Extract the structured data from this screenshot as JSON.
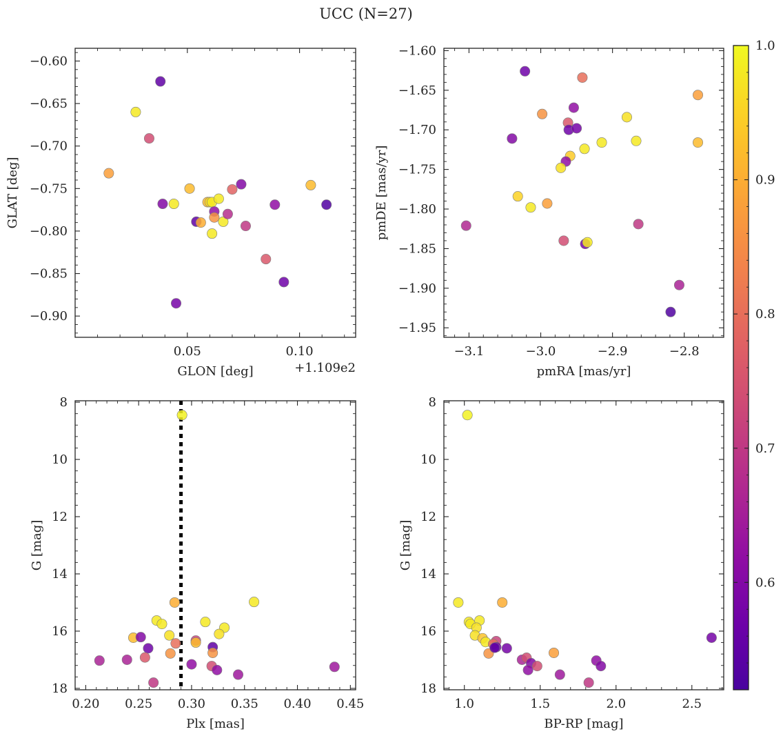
{
  "figure": {
    "title": "UCC (N=27)"
  },
  "colorbar": {
    "cmap": "plasma",
    "min": 0.52,
    "max": 1.0,
    "ticks": [
      0.6,
      0.7,
      0.8,
      0.9,
      1.0
    ],
    "tick_labels": [
      "0.6",
      "0.7",
      "0.8",
      "0.9",
      "1.0"
    ]
  },
  "chart_data": [
    {
      "type": "scatter",
      "name": "sky",
      "xlabel": "GLON [deg]",
      "ylabel": "GLAT [deg]",
      "offset_text": "+1.109e2",
      "xlim": [
        0.0,
        0.125
      ],
      "ylim": [
        -0.925,
        -0.585
      ],
      "invert_y": false,
      "xticks": [
        0.05,
        0.1
      ],
      "xtick_labels": [
        "0.05",
        "0.10"
      ],
      "yticks": [
        -0.9,
        -0.85,
        -0.8,
        -0.75,
        -0.7,
        -0.65,
        -0.6
      ],
      "ytick_labels": [
        "−0.90",
        "−0.85",
        "−0.80",
        "−0.75",
        "−0.70",
        "−0.65",
        "−0.60"
      ],
      "points": [
        [
          0.038,
          -0.624,
          0.55
        ],
        [
          0.027,
          -0.66,
          0.98
        ],
        [
          0.033,
          -0.691,
          0.74
        ],
        [
          0.015,
          -0.732,
          0.88
        ],
        [
          0.039,
          -0.768,
          0.6
        ],
        [
          0.044,
          -0.768,
          0.98
        ],
        [
          0.051,
          -0.75,
          0.92
        ],
        [
          0.054,
          -0.789,
          0.55
        ],
        [
          0.056,
          -0.79,
          0.9
        ],
        [
          0.059,
          -0.766,
          0.92
        ],
        [
          0.06,
          -0.766,
          0.96
        ],
        [
          0.061,
          -0.766,
          0.98
        ],
        [
          0.062,
          -0.777,
          0.62
        ],
        [
          0.062,
          -0.784,
          0.86
        ],
        [
          0.061,
          -0.803,
          0.98
        ],
        [
          0.064,
          -0.762,
          0.98
        ],
        [
          0.066,
          -0.789,
          0.98
        ],
        [
          0.068,
          -0.78,
          0.68
        ],
        [
          0.07,
          -0.751,
          0.78
        ],
        [
          0.074,
          -0.745,
          0.6
        ],
        [
          0.076,
          -0.794,
          0.7
        ],
        [
          0.045,
          -0.885,
          0.58
        ],
        [
          0.085,
          -0.833,
          0.76
        ],
        [
          0.089,
          -0.769,
          0.62
        ],
        [
          0.093,
          -0.86,
          0.57
        ],
        [
          0.105,
          -0.746,
          0.92
        ],
        [
          0.112,
          -0.769,
          0.53
        ]
      ]
    },
    {
      "type": "scatter",
      "name": "proper-motion",
      "xlabel": "pmRA [mas/yr]",
      "ylabel": "pmDE [mas/yr]",
      "xlim": [
        -3.135,
        -2.745
      ],
      "ylim": [
        -1.962,
        -1.597
      ],
      "invert_y": false,
      "xticks": [
        -3.1,
        -3.0,
        -2.9,
        -2.8
      ],
      "xtick_labels": [
        "−3.1",
        "−3.0",
        "−2.9",
        "−2.8"
      ],
      "yticks": [
        -1.95,
        -1.9,
        -1.85,
        -1.8,
        -1.75,
        -1.7,
        -1.65,
        -1.6
      ],
      "ytick_labels": [
        "−1.95",
        "−1.90",
        "−1.85",
        "−1.80",
        "−1.75",
        "−1.70",
        "−1.65",
        "−1.60"
      ],
      "points": [
        [
          -3.022,
          -1.626,
          0.57
        ],
        [
          -2.942,
          -1.634,
          0.8
        ],
        [
          -2.781,
          -1.656,
          0.88
        ],
        [
          -2.954,
          -1.672,
          0.62
        ],
        [
          -2.998,
          -1.68,
          0.86
        ],
        [
          -2.962,
          -1.691,
          0.76
        ],
        [
          -2.961,
          -1.7,
          0.57
        ],
        [
          -2.95,
          -1.698,
          0.58
        ],
        [
          -3.04,
          -1.711,
          0.6
        ],
        [
          -2.88,
          -1.684,
          0.97
        ],
        [
          -2.867,
          -1.714,
          0.98
        ],
        [
          -2.915,
          -1.716,
          0.98
        ],
        [
          -2.781,
          -1.716,
          0.92
        ],
        [
          -2.939,
          -1.724,
          0.98
        ],
        [
          -2.959,
          -1.733,
          0.94
        ],
        [
          -2.965,
          -1.74,
          0.62
        ],
        [
          -2.972,
          -1.748,
          0.97
        ],
        [
          -3.032,
          -1.784,
          0.95
        ],
        [
          -2.991,
          -1.793,
          0.88
        ],
        [
          -3.014,
          -1.798,
          0.98
        ],
        [
          -3.104,
          -1.821,
          0.67
        ],
        [
          -2.864,
          -1.819,
          0.7
        ],
        [
          -2.968,
          -1.84,
          0.74
        ],
        [
          -2.938,
          -1.844,
          0.58
        ],
        [
          -2.935,
          -1.842,
          0.98
        ],
        [
          -2.807,
          -1.896,
          0.66
        ],
        [
          -2.819,
          -1.93,
          0.53
        ]
      ]
    },
    {
      "type": "scatter",
      "name": "plx-mag",
      "xlabel": "Plx [mas]",
      "ylabel": "G [mag]",
      "xlim": [
        0.19,
        0.455
      ],
      "ylim": [
        18.05,
        7.95
      ],
      "invert_y": true,
      "vline": 0.29,
      "xticks": [
        0.2,
        0.25,
        0.3,
        0.35,
        0.4,
        0.45
      ],
      "xtick_labels": [
        "0.20",
        "0.25",
        "0.30",
        "0.35",
        "0.40",
        "0.45"
      ],
      "yticks": [
        8,
        10,
        12,
        14,
        16,
        18
      ],
      "ytick_labels": [
        "8",
        "10",
        "12",
        "14",
        "16",
        "18"
      ],
      "points": [
        [
          0.291,
          8.45,
          0.99
        ],
        [
          0.284,
          15.0,
          0.9
        ],
        [
          0.359,
          14.98,
          0.98
        ],
        [
          0.313,
          15.68,
          0.98
        ],
        [
          0.267,
          15.63,
          0.98
        ],
        [
          0.272,
          15.75,
          0.98
        ],
        [
          0.331,
          15.88,
          0.98
        ],
        [
          0.326,
          16.1,
          0.97
        ],
        [
          0.279,
          16.15,
          0.97
        ],
        [
          0.245,
          16.23,
          0.92
        ],
        [
          0.252,
          16.21,
          0.6
        ],
        [
          0.304,
          16.33,
          0.72
        ],
        [
          0.304,
          16.4,
          0.92
        ],
        [
          0.285,
          16.43,
          0.8
        ],
        [
          0.259,
          16.6,
          0.57
        ],
        [
          0.32,
          16.56,
          0.55
        ],
        [
          0.32,
          16.76,
          0.86
        ],
        [
          0.28,
          16.78,
          0.86
        ],
        [
          0.256,
          16.92,
          0.76
        ],
        [
          0.213,
          17.03,
          0.66
        ],
        [
          0.239,
          17.0,
          0.66
        ],
        [
          0.3,
          17.16,
          0.62
        ],
        [
          0.319,
          17.22,
          0.74
        ],
        [
          0.324,
          17.36,
          0.62
        ],
        [
          0.344,
          17.52,
          0.64
        ],
        [
          0.435,
          17.25,
          0.64
        ],
        [
          0.264,
          17.8,
          0.7
        ]
      ]
    },
    {
      "type": "scatter",
      "name": "cmd",
      "xlabel": "BP-RP [mag]",
      "ylabel": "G [mag]",
      "xlim": [
        0.865,
        2.71
      ],
      "ylim": [
        18.05,
        7.95
      ],
      "invert_y": true,
      "xticks": [
        1.0,
        1.5,
        2.0,
        2.5
      ],
      "xtick_labels": [
        "1.0",
        "1.5",
        "2.0",
        "2.5"
      ],
      "yticks": [
        8,
        10,
        12,
        14,
        16,
        18
      ],
      "ytick_labels": [
        "8",
        "10",
        "12",
        "14",
        "16",
        "18"
      ],
      "points": [
        [
          1.02,
          8.45,
          0.99
        ],
        [
          0.96,
          15.0,
          0.98
        ],
        [
          1.25,
          15.0,
          0.9
        ],
        [
          1.03,
          15.68,
          0.98
        ],
        [
          1.04,
          15.75,
          0.98
        ],
        [
          1.1,
          15.63,
          0.98
        ],
        [
          1.08,
          15.88,
          0.97
        ],
        [
          1.07,
          16.15,
          0.97
        ],
        [
          1.12,
          16.25,
          0.93
        ],
        [
          1.14,
          16.38,
          0.98
        ],
        [
          1.21,
          16.35,
          0.72
        ],
        [
          1.19,
          16.45,
          0.8
        ],
        [
          1.21,
          16.56,
          0.57
        ],
        [
          1.28,
          16.6,
          0.58
        ],
        [
          1.16,
          16.78,
          0.86
        ],
        [
          1.59,
          16.76,
          0.88
        ],
        [
          2.63,
          16.23,
          0.58
        ],
        [
          1.38,
          17.0,
          0.66
        ],
        [
          1.41,
          16.93,
          0.74
        ],
        [
          1.44,
          17.12,
          0.6
        ],
        [
          1.48,
          17.22,
          0.74
        ],
        [
          1.42,
          17.36,
          0.62
        ],
        [
          1.87,
          17.03,
          0.62
        ],
        [
          1.9,
          17.22,
          0.6
        ],
        [
          1.63,
          17.52,
          0.64
        ],
        [
          1.82,
          17.8,
          0.7
        ],
        [
          1.2,
          16.58,
          0.55
        ]
      ]
    }
  ]
}
